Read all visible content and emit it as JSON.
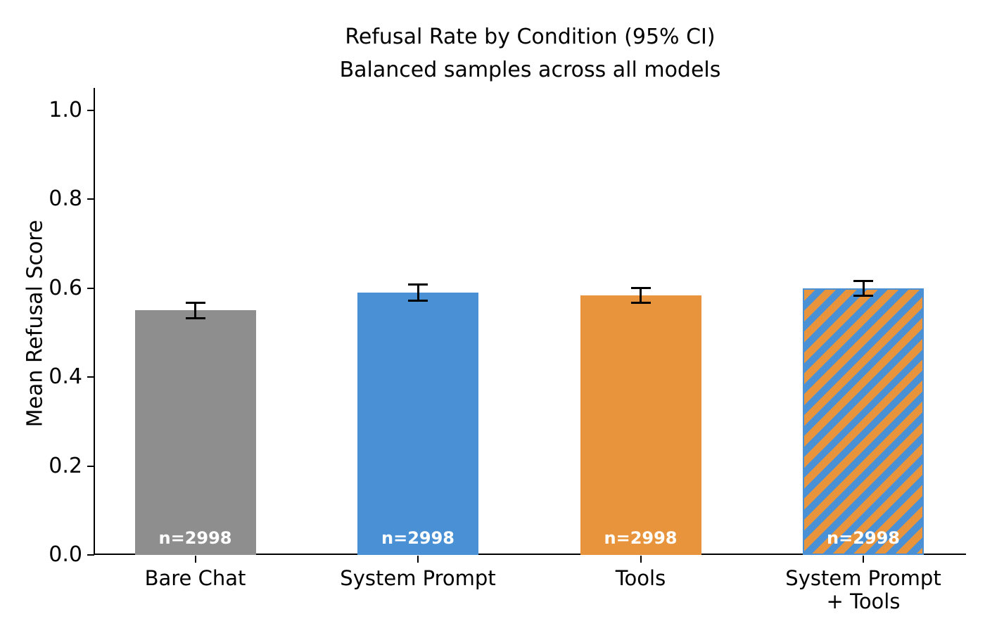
{
  "chart_data": {
    "type": "bar",
    "title": "Refusal Rate by Condition (95% CI)",
    "subtitle": "Balanced samples across all models",
    "ylabel": "Mean Refusal Score",
    "xlabel": "",
    "categories": [
      "Bare Chat",
      "System Prompt",
      "Tools",
      "System Prompt\n+ Tools"
    ],
    "values": [
      0.55,
      0.59,
      0.584,
      0.6
    ],
    "ci95": [
      0.017,
      0.018,
      0.016,
      0.017
    ],
    "bar_count_labels": [
      "n=2998",
      "n=2998",
      "n=2998",
      "n=2998"
    ],
    "bar_colors": [
      "#8e8e8e",
      "#4a90d5",
      "#e8943c",
      "striped"
    ],
    "striped_bar": {
      "description": "diagonal forward-slash stripes",
      "stripe_colors": [
        "#e8943c",
        "#4a90d5"
      ],
      "edge_color": "#4a90d5"
    },
    "error_bar_color": "#000000",
    "text_color": "#000000",
    "count_label_color": "#ffffff",
    "ylim": [
      0,
      1.05
    ],
    "yticks": [
      0.0,
      0.2,
      0.4,
      0.6,
      0.8,
      1.0
    ],
    "grid": false,
    "legend": null
  }
}
